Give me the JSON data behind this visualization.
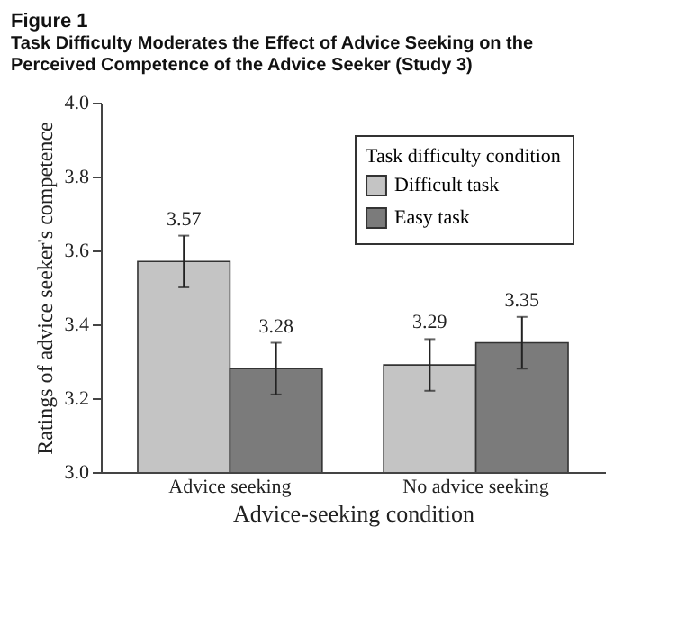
{
  "chart_data": {
    "type": "bar",
    "title": "Figure 1",
    "subtitle": "Task Difficulty Moderates the Effect of Advice Seeking on the Perceived Competence of the Advice Seeker (Study 3)",
    "xlabel": "Advice-seeking condition",
    "ylabel": "Ratings of advice seeker's competence",
    "legend_title": "Task difficulty condition",
    "categories": [
      "Advice seeking",
      "No advice seeking"
    ],
    "series": [
      {
        "name": "Difficult task",
        "color": "#c4c4c4",
        "values": [
          3.57,
          3.29
        ],
        "errors": [
          0.07,
          0.07
        ]
      },
      {
        "name": "Easy task",
        "color": "#7b7b7b",
        "values": [
          3.28,
          3.35
        ],
        "errors": [
          0.07,
          0.07
        ]
      }
    ],
    "ylim": [
      3.0,
      4.0
    ],
    "yticks": [
      {
        "value": 3.0,
        "label": "3.0"
      },
      {
        "value": 3.2,
        "label": "3.2"
      },
      {
        "value": 3.4,
        "label": "3.4"
      },
      {
        "value": 3.6,
        "label": "3.6"
      },
      {
        "value": 3.8,
        "label": "3.8"
      },
      {
        "value": 4.0,
        "label": "4.0"
      }
    ],
    "data_labels": true,
    "legend": "top right",
    "grid": false
  }
}
